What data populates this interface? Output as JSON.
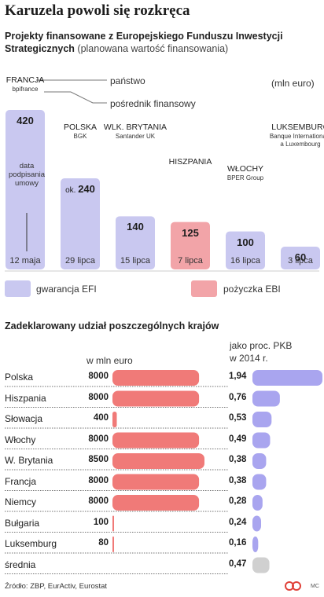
{
  "title": "Karuzela powoli się rozkręca",
  "subtitle_bold": "Projekty finansowane z Europejskiego Funduszu Inwestycji Strategicznych",
  "subtitle_light": "(planowana wartość finansowania)",
  "unit": "(mln euro)",
  "annotations": {
    "country_label": "państwo",
    "intermediary_label": "pośrednik finansowy",
    "signing_date_label": "data podpisania umowy"
  },
  "colors": {
    "gwarancja": "#c9c8f0",
    "pozyczka": "#f2a4a8",
    "red": "#f07a78",
    "purple": "#a9a5ef",
    "grey": "#d0d0d0"
  },
  "chart_data": [
    {
      "type": "bar",
      "title": "Projekty finansowane z Europejskiego Funduszu Inwestycji Strategicznych (planowana wartość finansowania)",
      "unit": "(mln euro)",
      "categories": [
        "FRANCJA",
        "POLSKA",
        "WLK. BRYTANIA",
        "HISZPANIA",
        "WŁOCHY",
        "LUKSEMBURG"
      ],
      "intermediaries": [
        "bpifrance",
        "BGK",
        "Santander UK",
        "",
        "BPER Group",
        "Banque Internationale a Luxembourg"
      ],
      "values": [
        420,
        240,
        140,
        125,
        100,
        60
      ],
      "value_labels": [
        "420",
        "240",
        "140",
        "125",
        "100",
        "60"
      ],
      "value_prefixes": [
        "",
        "ok.",
        "",
        "",
        "",
        ""
      ],
      "dates": [
        "12 maja",
        "29 lipca",
        "15 lipca",
        "7 lipca",
        "16 lipca",
        "3 lipca"
      ],
      "types": [
        "gwarancja",
        "gwarancja",
        "gwarancja",
        "pozyczka",
        "gwarancja",
        "gwarancja"
      ],
      "legend": [
        {
          "key": "gwarancja",
          "label": "gwarancja EFI"
        },
        {
          "key": "pozyczka",
          "label": "pożyczka EBI"
        }
      ],
      "ylim": [
        0,
        420
      ]
    },
    {
      "type": "bar",
      "orientation": "horizontal",
      "title": "Zadeklarowany udział poszczególnych krajów",
      "col1_header": "w mln euro",
      "col2_header_line1": "jako proc. PKB",
      "col2_header_line2": "w 2014 r.",
      "rows": [
        {
          "label": "Polska",
          "value": 8000,
          "value_label": "8000",
          "pkb": 1.94,
          "pkb_label": "1,94"
        },
        {
          "label": "Hiszpania",
          "value": 8000,
          "value_label": "8000",
          "pkb": 0.76,
          "pkb_label": "0,76"
        },
        {
          "label": "Słowacja",
          "value": 400,
          "value_label": "400",
          "pkb": 0.53,
          "pkb_label": "0,53"
        },
        {
          "label": "Włochy",
          "value": 8000,
          "value_label": "8000",
          "pkb": 0.49,
          "pkb_label": "0,49"
        },
        {
          "label": "W. Brytania",
          "value": 8500,
          "value_label": "8500",
          "pkb": 0.38,
          "pkb_label": "0,38"
        },
        {
          "label": "Francja",
          "value": 8000,
          "value_label": "8000",
          "pkb": 0.38,
          "pkb_label": "0,38"
        },
        {
          "label": "Niemcy",
          "value": 8000,
          "value_label": "8000",
          "pkb": 0.28,
          "pkb_label": "0,28"
        },
        {
          "label": "Bułgaria",
          "value": 100,
          "value_label": "100",
          "pkb": 0.24,
          "pkb_label": "0,24"
        },
        {
          "label": "Luksemburg",
          "value": 80,
          "value_label": "80",
          "pkb": 0.16,
          "pkb_label": "0,16"
        },
        {
          "label": "średnia",
          "value": null,
          "value_label": "",
          "pkb": 0.47,
          "pkb_label": "0,47",
          "is_average": true
        }
      ]
    }
  ],
  "source": "Źródło: ZBP, EurActiv, Eurostat",
  "credit": "MC"
}
